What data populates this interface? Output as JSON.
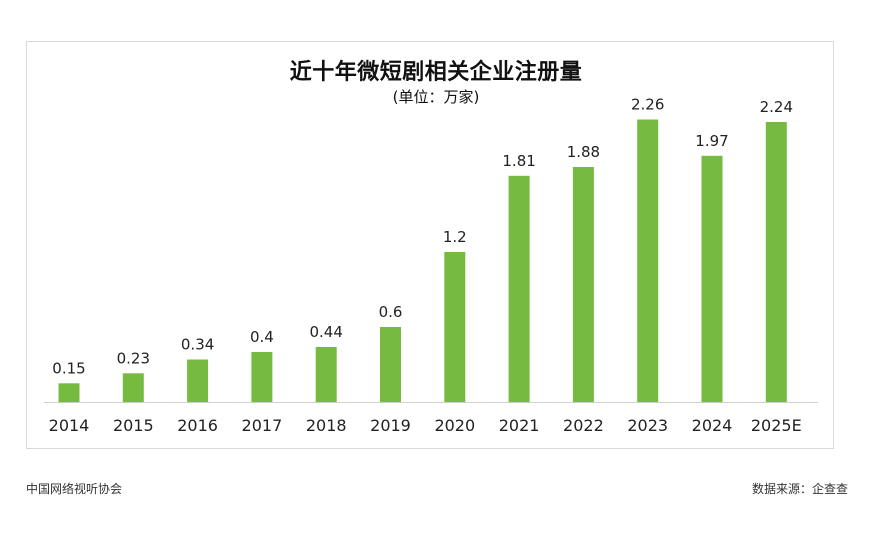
{
  "chart_data": {
    "type": "bar",
    "title": "近十年微短剧相关企业注册量",
    "subtitle": "(单位：万家)",
    "categories": [
      "2014",
      "2015",
      "2016",
      "2017",
      "2018",
      "2019",
      "2020",
      "2021",
      "2022",
      "2023",
      "2024",
      "2025E"
    ],
    "values": [
      0.15,
      0.23,
      0.34,
      0.4,
      0.44,
      0.6,
      1.2,
      1.81,
      1.88,
      2.26,
      1.97,
      2.24
    ],
    "value_labels": [
      "0.15",
      "0.23",
      "0.34",
      "0.4",
      "0.44",
      "0.6",
      "1.2",
      "1.81",
      "1.88",
      "2.26",
      "1.97",
      "2.24"
    ],
    "ylim": [
      0,
      2.4
    ],
    "grid": false,
    "legend": "none",
    "bar_color": "#76BB40",
    "axis_color": "#d0d0d0"
  },
  "footer": {
    "source_org": "中国网络视听协会",
    "data_source": "数据来源：企查查"
  }
}
